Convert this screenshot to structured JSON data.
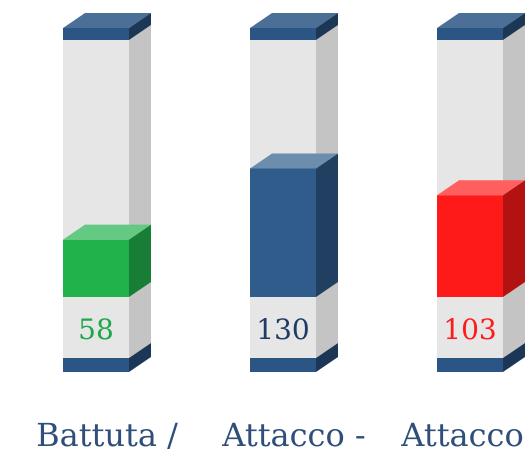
{
  "chart_data": {
    "type": "bar",
    "categories": [
      "Battuta /",
      "Attacco -",
      "Attacco +"
    ],
    "values": [
      58,
      130,
      103
    ],
    "ylim": [
      0,
      260
    ],
    "colors": [
      "#22b24c",
      "#2f5c8a",
      "#ff1a1a"
    ],
    "label_colors": [
      "#1fa84a",
      "#1f3b63",
      "#ff1a1a"
    ],
    "cap_color": "#2b5584",
    "tube_color": "#e6e6e6",
    "grid": false
  }
}
